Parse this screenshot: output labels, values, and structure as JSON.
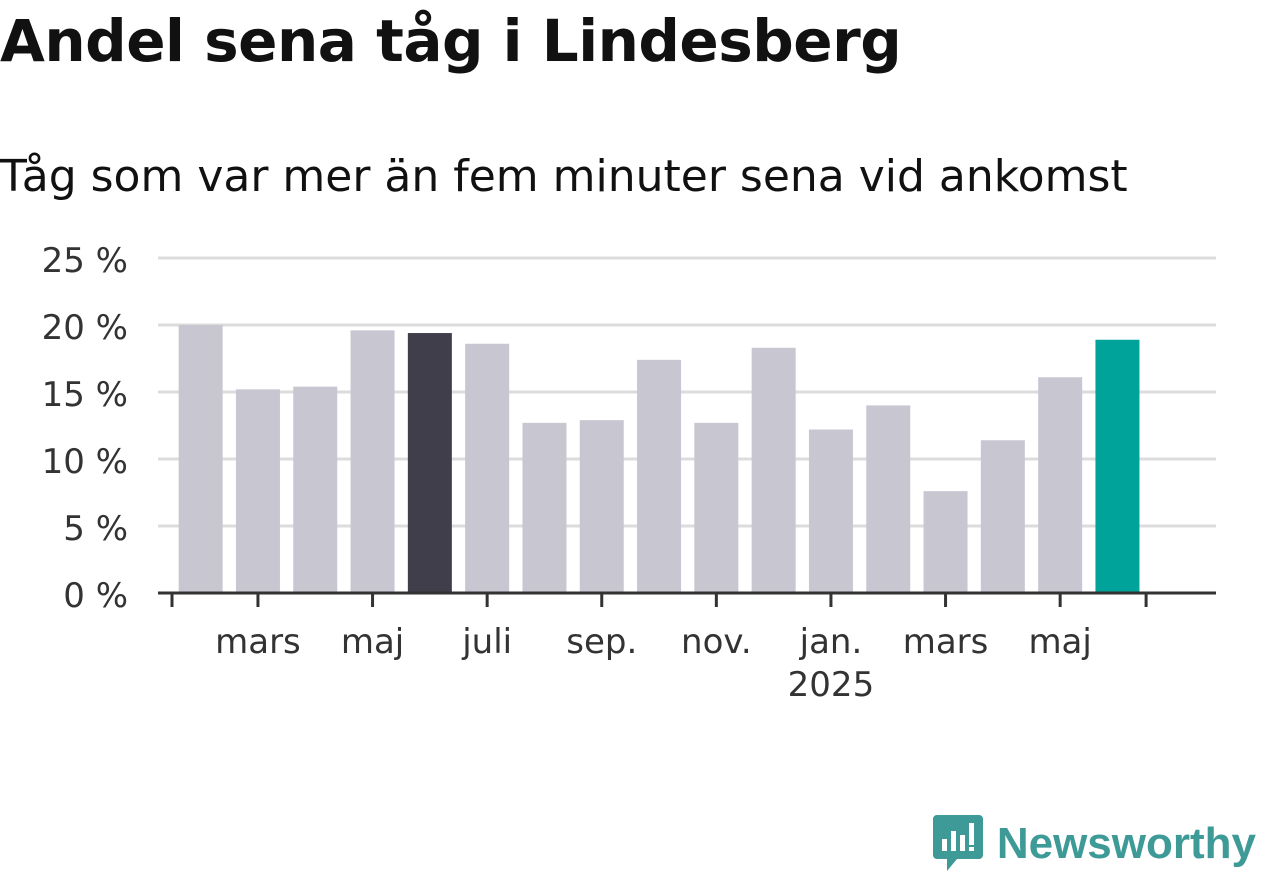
{
  "header": {
    "title": "Andel sena tåg i Lindesberg",
    "subtitle": "Tåg som var mer än fem minuter sena vid ankomst"
  },
  "brand": {
    "name": "Newsworthy",
    "logo_icon": "newsworthy-logo-icon",
    "color": "#3e9a97"
  },
  "colors": {
    "bar_default": "#c8c6d1",
    "bar_highlight_dark": "#403e4b",
    "bar_highlight_teal": "#00a39a",
    "grid": "#dcdcdc",
    "axis": "#333333"
  },
  "chart_data": {
    "type": "bar",
    "title": "Andel sena tåg i Lindesberg",
    "subtitle": "Tåg som var mer än fem minuter sena vid ankomst",
    "xlabel": "",
    "ylabel": "",
    "categories": [
      "2024-02",
      "2024-03",
      "2024-04",
      "2024-05",
      "2024-06",
      "2024-07",
      "2024-08",
      "2024-09",
      "2024-10",
      "2024-11",
      "2024-12",
      "2025-01",
      "2025-02",
      "2025-03",
      "2025-04",
      "2025-05",
      "2025-06"
    ],
    "values": [
      20.0,
      15.2,
      15.4,
      19.6,
      19.4,
      18.6,
      12.7,
      12.9,
      17.4,
      12.7,
      18.3,
      12.2,
      14.0,
      7.6,
      11.4,
      16.1,
      18.9
    ],
    "highlight": {
      "2024-06": "dark",
      "2025-06": "teal"
    },
    "ylim": [
      0,
      25
    ],
    "yticks": [
      {
        "value": 0,
        "label": "0 %"
      },
      {
        "value": 5,
        "label": "5 %"
      },
      {
        "value": 10,
        "label": "10 %"
      },
      {
        "value": 15,
        "label": "15 %"
      },
      {
        "value": 20,
        "label": "20 %"
      },
      {
        "value": 25,
        "label": "25 %"
      }
    ],
    "xtick_labels": [
      {
        "category": "2024-03",
        "label": "mars"
      },
      {
        "category": "2024-05",
        "label": "maj"
      },
      {
        "category": "2024-07",
        "label": "juli"
      },
      {
        "category": "2024-09",
        "label": "sep."
      },
      {
        "category": "2024-11",
        "label": "nov."
      },
      {
        "category": "2025-01",
        "label": "jan.",
        "sublabel": "2025"
      },
      {
        "category": "2025-03",
        "label": "mars"
      },
      {
        "category": "2025-05",
        "label": "maj"
      }
    ],
    "grid": true,
    "legend": "none"
  }
}
